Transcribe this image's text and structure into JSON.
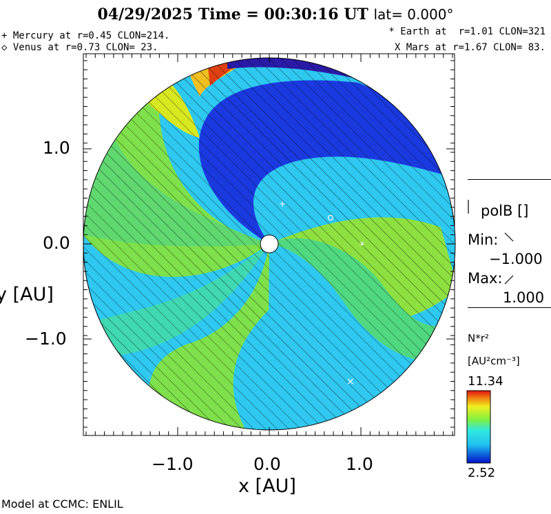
{
  "header": {
    "date": "04/29/2025",
    "time_text": "Time = 00:30:16 UT",
    "lat_text": "lat= 0.000°"
  },
  "planets": {
    "mercury": "+ Mercury at r=0.45 CLON=214.",
    "venus": "◇ Venus at r=0.73 CLON= 23.",
    "earth": "* Earth at  r=1.01 CLON=321",
    "mars": "X Mars at r=1.67 CLON= 83."
  },
  "axes": {
    "xlabel": "x [AU]",
    "ylabel": "y [AU]",
    "x_ticks": [
      "−1.0",
      "0.0",
      "1.0"
    ],
    "y_ticks": [
      "1.0",
      "0.0",
      "−1.0"
    ]
  },
  "polarity_legend": {
    "title": "polB []",
    "min_label": "Min:",
    "min_value": "−1.000",
    "max_label": "Max:",
    "max_value": "1.000"
  },
  "colorbar": {
    "quantity": "N*r²",
    "units": "[AU²cm⁻³]",
    "max": "11.34",
    "min": "2.52"
  },
  "footer": {
    "credit": "Model at CCMC: ENLIL"
  },
  "colors": {
    "low_density": "#1020c0",
    "mid_density": "#30d8f0",
    "high_density": "#e03010"
  }
}
